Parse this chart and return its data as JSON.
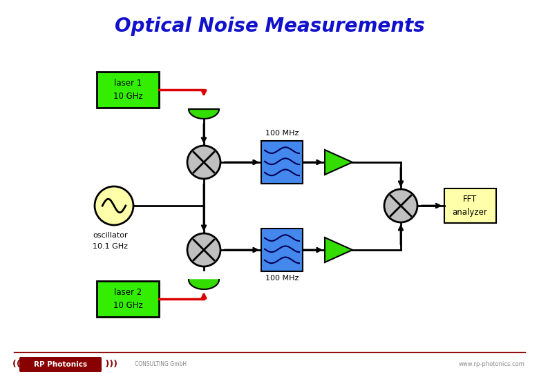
{
  "title": "Optical Noise Measurements",
  "title_color": "#1111CC",
  "title_fontsize": 20,
  "bg_color": "#FFFFFF",
  "laser1_label": "laser 1\n10 GHz",
  "laser2_label": "laser 2\n10 GHz",
  "osc_label": "oscillator\n10.1 GHz",
  "fft_label": "FFT\nanalyzer",
  "mhz_label": "100 MHz",
  "laser_box_color": "#33EE00",
  "fft_box_color": "#FFFFAA",
  "filter_box_color": "#4488EE",
  "mixer_color": "#C0C0C0",
  "coupler_color": "#33DD00",
  "osc_color": "#FFFFAA",
  "arrow_color": "#DD0000",
  "line_color": "#000000",
  "amp_color": "#33DD00",
  "logo_line_color": "#880000",
  "logo_bg_color": "#880000",
  "logo_text_color": "#FFFFFF",
  "footer_text_color": "#888888"
}
